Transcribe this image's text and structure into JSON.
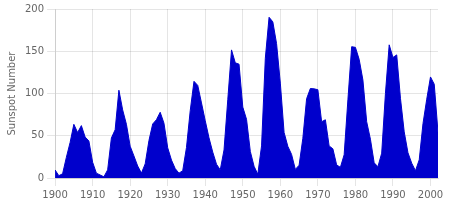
{
  "chart_data": {
    "type": "area",
    "ylabel": "Sunspot Number",
    "x": [
      1900,
      1901,
      1902,
      1903,
      1904,
      1905,
      1906,
      1907,
      1908,
      1909,
      1910,
      1911,
      1912,
      1913,
      1914,
      1915,
      1916,
      1917,
      1918,
      1919,
      1920,
      1921,
      1922,
      1923,
      1924,
      1925,
      1926,
      1927,
      1928,
      1929,
      1930,
      1931,
      1932,
      1933,
      1934,
      1935,
      1936,
      1937,
      1938,
      1939,
      1940,
      1941,
      1942,
      1943,
      1944,
      1945,
      1946,
      1947,
      1948,
      1949,
      1950,
      1951,
      1952,
      1953,
      1954,
      1955,
      1956,
      1957,
      1958,
      1959,
      1960,
      1961,
      1962,
      1963,
      1964,
      1965,
      1966,
      1967,
      1968,
      1969,
      1970,
      1971,
      1972,
      1973,
      1974,
      1975,
      1976,
      1977,
      1978,
      1979,
      1980,
      1981,
      1982,
      1983,
      1984,
      1985,
      1986,
      1987,
      1988,
      1989,
      1990,
      1991,
      1992,
      1993,
      1994,
      1995,
      1996,
      1997,
      1998,
      1999,
      2000,
      2001,
      2002
    ],
    "values": [
      9.5,
      2.7,
      5.0,
      24.4,
      42.0,
      63.5,
      53.8,
      62.0,
      48.5,
      43.9,
      18.6,
      5.7,
      3.6,
      1.4,
      9.6,
      47.4,
      57.1,
      103.9,
      80.6,
      63.6,
      37.6,
      26.1,
      14.2,
      5.8,
      16.7,
      44.3,
      63.9,
      69.0,
      77.8,
      64.9,
      35.7,
      21.2,
      11.1,
      5.7,
      8.7,
      36.1,
      79.7,
      114.4,
      109.6,
      88.8,
      67.8,
      47.5,
      30.6,
      16.3,
      9.6,
      33.2,
      92.6,
      151.6,
      136.3,
      134.7,
      83.9,
      69.4,
      31.5,
      13.9,
      4.4,
      38.0,
      141.7,
      190.2,
      184.8,
      159.0,
      112.3,
      53.9,
      37.5,
      27.9,
      10.2,
      15.1,
      47.0,
      93.8,
      105.9,
      105.5,
      104.5,
      66.6,
      68.9,
      38.0,
      34.5,
      15.5,
      12.6,
      27.5,
      92.5,
      155.4,
      154.6,
      140.4,
      115.9,
      66.6,
      45.9,
      17.9,
      13.4,
      29.4,
      100.2,
      157.6,
      142.6,
      145.7,
      94.3,
      54.6,
      29.9,
      17.5,
      8.6,
      21.5,
      64.3,
      93.3,
      119.6,
      111.0,
      54.0
    ],
    "color": "#0000cc",
    "xlim": [
      1900,
      2002
    ],
    "ylim": [
      0,
      200
    ],
    "xticks": [
      1900,
      1910,
      1920,
      1930,
      1940,
      1950,
      1960,
      1970,
      1980,
      1990,
      2000
    ],
    "yticks": [
      0,
      50,
      100,
      150,
      200
    ],
    "grid": true
  }
}
